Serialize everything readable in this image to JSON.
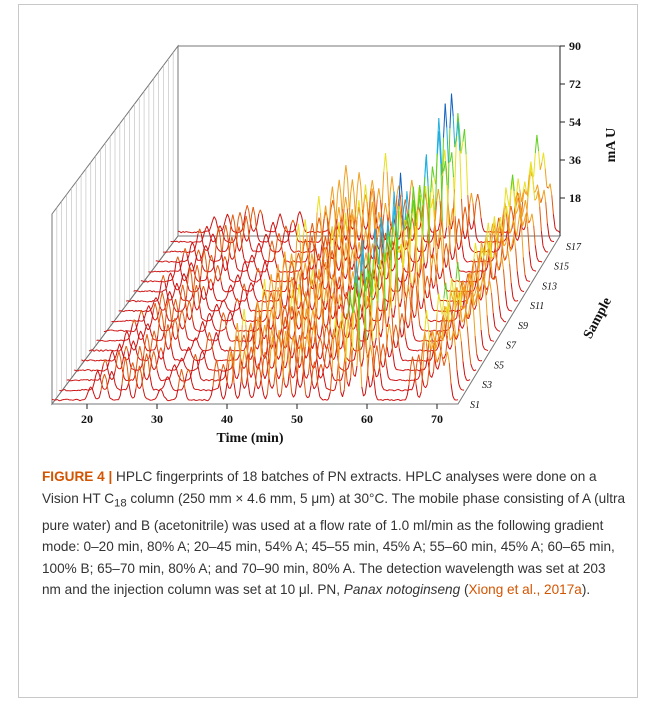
{
  "chart_data": {
    "type": "line",
    "title": "",
    "xlabel": "Time (min)",
    "ylabel": "mA U",
    "zlabel": "Sample",
    "xlim": [
      15,
      73
    ],
    "ylim": [
      0,
      90
    ],
    "x_ticks": [
      "20",
      "30",
      "40",
      "50",
      "60",
      "70"
    ],
    "y_ticks": [
      "18",
      "36",
      "54",
      "72",
      "90"
    ],
    "sample_ticks": [
      "S1",
      "S3",
      "S5",
      "S7",
      "S9",
      "S11",
      "S13",
      "S15",
      "S17"
    ],
    "n_samples": 18,
    "colors": [
      "#cc1111",
      "#e05a10",
      "#f0a020",
      "#e8e020",
      "#60d020",
      "#20b0e0",
      "#1060c0"
    ],
    "peaks": [
      {
        "time": 20.5,
        "height": 12
      },
      {
        "time": 22.5,
        "height": 14
      },
      {
        "time": 25.5,
        "height": 22
      },
      {
        "time": 27.5,
        "height": 18
      },
      {
        "time": 30.5,
        "height": 10
      },
      {
        "time": 33.5,
        "height": 15
      },
      {
        "time": 38.5,
        "height": 20
      },
      {
        "time": 40.5,
        "height": 38
      },
      {
        "time": 42.5,
        "height": 30
      },
      {
        "time": 44.5,
        "height": 26
      },
      {
        "time": 46.5,
        "height": 40
      },
      {
        "time": 48.5,
        "height": 34
      },
      {
        "time": 50.5,
        "height": 28
      },
      {
        "time": 52.5,
        "height": 22
      },
      {
        "time": 55.5,
        "height": 44
      },
      {
        "time": 57.5,
        "height": 72
      },
      {
        "time": 58.5,
        "height": 66
      },
      {
        "time": 60.5,
        "height": 30
      },
      {
        "time": 66.5,
        "height": 24
      },
      {
        "time": 68.5,
        "height": 42
      },
      {
        "time": 69.5,
        "height": 46
      },
      {
        "time": 70.5,
        "height": 40
      },
      {
        "time": 71.5,
        "height": 34
      }
    ]
  },
  "caption": {
    "label": "FIGURE 4 |",
    "text_1": " HPLC fingerprints of 18 batches of PN extracts. HPLC analyses were done on a Vision HT C",
    "sub": "18",
    "text_2": " column (250 mm × 4.6 mm, 5 μm) at 30°C. The mobile phase consisting of A (ultra pure water) and B (acetonitrile) was used at a flow rate of 1.0 ml/min as the following gradient mode: 0–20 min, 80% A; 20–45 min, 54% A; 45–55 min, 45% A; 55–60 min, 45% A; 60–65 min, 100% B; 65–70 min, 80% A; and 70–90 min, 80% A. The detection wavelength was set at 203 nm and the injection column was set at 10 μl. PN, ",
    "species": "Panax notoginseng",
    "text_3": " (",
    "citation": "Xiong et al., 2017a",
    "text_4": ")."
  }
}
